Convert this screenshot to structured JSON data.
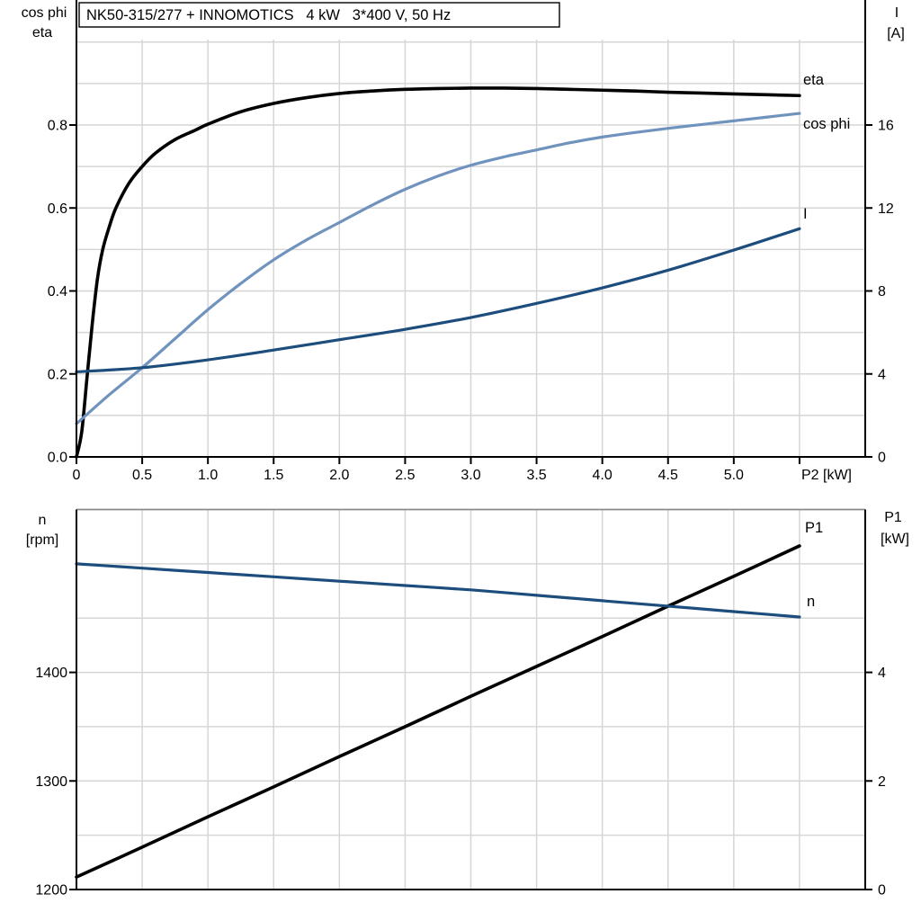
{
  "title_box": {
    "text": "NK50-315/277 + INNOMOTICS   4 kW   3*400 V, 50 Hz"
  },
  "colors": {
    "eta": "#000000",
    "cos_phi": "#7093be",
    "current": "#1c4d7d",
    "p1": "#000000",
    "n": "#1c4d7d",
    "grid": "#d6d6d6",
    "axis": "#000000",
    "frame_top": "#8a8a8a"
  },
  "chart_data": [
    {
      "id": "top",
      "type": "line",
      "title": "NK50-315/277 + INNOMOTICS   4 kW   3*400 V, 50 Hz",
      "x_axis": {
        "label": "P2 [kW]",
        "range": [
          0,
          6
        ],
        "grid_step": 0.5,
        "tick_values": [
          0,
          0.5,
          1,
          1.5,
          2,
          2.5,
          3,
          3.5,
          4,
          4.5,
          5,
          5.5
        ],
        "tick_labels": [
          "0",
          "0.5",
          "1.0",
          "1.5",
          "2.0",
          "2.5",
          "3.0",
          "3.5",
          "4.0",
          "4.5",
          "5.0",
          ""
        ]
      },
      "y_left": {
        "labels": [
          "cos phi",
          "eta"
        ],
        "range": [
          0,
          1.0
        ],
        "grid_step": 0.1,
        "tick_values": [
          0,
          0.2,
          0.4,
          0.6,
          0.8
        ],
        "tick_labels": [
          "0.0",
          "0.2",
          "0.4",
          "0.6",
          "0.8"
        ]
      },
      "y_right": {
        "labels": [
          "I",
          "[A]"
        ],
        "range": [
          0,
          20
        ],
        "tick_values": [
          0,
          4,
          8,
          12,
          16
        ],
        "tick_labels": [
          "0",
          "4",
          "8",
          "12",
          "16"
        ]
      },
      "series": [
        {
          "name": "eta",
          "label": "eta",
          "axis": "left",
          "color_key": "eta",
          "x": [
            0,
            0.04,
            0.08,
            0.12,
            0.16,
            0.2,
            0.25,
            0.3,
            0.4,
            0.5,
            0.6,
            0.75,
            0.9,
            1.0,
            1.25,
            1.5,
            1.75,
            2.0,
            2.25,
            2.5,
            2.75,
            3.0,
            3.25,
            3.5,
            3.75,
            4.0,
            4.25,
            4.5,
            4.75,
            5.0,
            5.25,
            5.5
          ],
          "values": [
            0,
            0.06,
            0.19,
            0.32,
            0.43,
            0.5,
            0.555,
            0.6,
            0.66,
            0.7,
            0.732,
            0.765,
            0.787,
            0.802,
            0.832,
            0.852,
            0.866,
            0.876,
            0.882,
            0.886,
            0.888,
            0.889,
            0.889,
            0.888,
            0.886,
            0.884,
            0.882,
            0.879,
            0.877,
            0.875,
            0.873,
            0.871
          ]
        },
        {
          "name": "cos phi",
          "label": "cos phi",
          "axis": "left",
          "color_key": "cos_phi",
          "x": [
            0,
            0.25,
            0.5,
            0.75,
            1.0,
            1.25,
            1.5,
            1.75,
            2.0,
            2.25,
            2.5,
            2.75,
            3.0,
            3.25,
            3.5,
            3.75,
            4.0,
            4.25,
            4.5,
            4.75,
            5.0,
            5.25,
            5.5
          ],
          "values": [
            0.08,
            0.15,
            0.215,
            0.285,
            0.355,
            0.418,
            0.475,
            0.523,
            0.565,
            0.607,
            0.645,
            0.677,
            0.703,
            0.723,
            0.74,
            0.757,
            0.771,
            0.782,
            0.792,
            0.801,
            0.81,
            0.819,
            0.828
          ]
        },
        {
          "name": "I",
          "label": "I",
          "axis": "right",
          "color_key": "current",
          "x": [
            0,
            0.5,
            1.0,
            1.5,
            2.0,
            2.5,
            3.0,
            3.5,
            4.0,
            4.5,
            5.0,
            5.5
          ],
          "values": [
            4.1,
            4.3,
            4.68,
            5.15,
            5.65,
            6.15,
            6.72,
            7.4,
            8.15,
            9.0,
            9.97,
            11.0
          ]
        }
      ]
    },
    {
      "id": "bottom",
      "type": "line",
      "x_axis": {
        "label": "",
        "range": [
          0,
          6
        ],
        "grid_step": 0.5,
        "tick_values": [],
        "tick_labels": []
      },
      "y_left": {
        "labels": [
          "n",
          "[rpm]"
        ],
        "range": [
          1200,
          1550
        ],
        "grid_step": 50,
        "tick_values": [
          1200,
          1300,
          1400
        ],
        "tick_labels": [
          "1200",
          "1300",
          "1400"
        ]
      },
      "y_right": {
        "labels": [
          "P1",
          "[kW]"
        ],
        "range": [
          0,
          7
        ],
        "tick_values": [
          0,
          2,
          4
        ],
        "tick_labels": [
          "0",
          "2",
          "4"
        ]
      },
      "series": [
        {
          "name": "P1",
          "label": "P1",
          "axis": "right",
          "color_key": "p1",
          "x": [
            0,
            0.5,
            1.0,
            1.5,
            2.0,
            2.5,
            3.0,
            3.5,
            4.0,
            4.5,
            5.0,
            5.5
          ],
          "values": [
            0.23,
            0.78,
            1.34,
            1.89,
            2.45,
            3.0,
            3.56,
            4.11,
            4.66,
            5.22,
            5.77,
            6.33
          ]
        },
        {
          "name": "n",
          "label": "n",
          "axis": "left",
          "color_key": "n",
          "x": [
            0,
            0.5,
            1.0,
            1.5,
            2.0,
            2.5,
            3.0,
            3.5,
            4.0,
            4.5,
            5.0,
            5.5
          ],
          "values": [
            1500,
            1496,
            1492,
            1488,
            1484,
            1480,
            1476,
            1471,
            1466,
            1461,
            1456,
            1451
          ]
        }
      ]
    }
  ]
}
